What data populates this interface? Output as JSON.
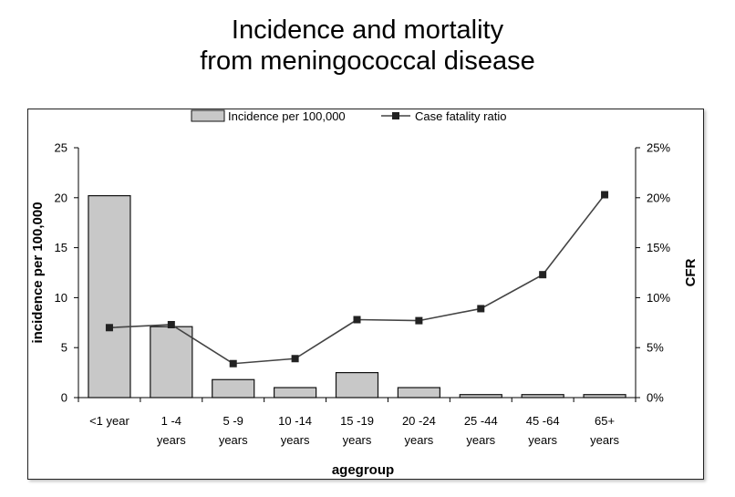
{
  "title_line1": "Incidence and mortality",
  "title_line2": "from meningococcal disease",
  "chart_data": {
    "type": "bar+line",
    "categories": [
      [
        "<1 year"
      ],
      [
        "1 -4",
        "years"
      ],
      [
        "5 -9",
        "years"
      ],
      [
        "10 -14",
        "years"
      ],
      [
        "15 -19",
        "years"
      ],
      [
        "20 -24",
        "years"
      ],
      [
        "25 -44",
        "years"
      ],
      [
        "45 -64",
        "years"
      ],
      [
        "65+",
        "years"
      ]
    ],
    "series": [
      {
        "name": "Incidence per 100,000",
        "kind": "bar",
        "axis": "left",
        "values": [
          20.2,
          7.1,
          1.8,
          1.0,
          2.5,
          1.0,
          0.3,
          0.3,
          0.3
        ]
      },
      {
        "name": "Case fatality ratio",
        "kind": "line",
        "axis": "right",
        "values": [
          7.0,
          7.3,
          3.4,
          3.9,
          7.8,
          7.7,
          8.9,
          12.3,
          20.3
        ]
      }
    ],
    "xlabel": "agegroup",
    "ylabel": "incidence per 100,000",
    "y2label": "CFR",
    "ylim": [
      0,
      25
    ],
    "y2lim": [
      0,
      25
    ],
    "yticks": [
      "0",
      "5",
      "10",
      "15",
      "20",
      "25"
    ],
    "y2ticks": [
      "0%",
      "5%",
      "10%",
      "15%",
      "20%",
      "25%"
    ],
    "legend_position": "top-center",
    "colors": {
      "bar_fill": "#c8c8c8",
      "bar_stroke": "#111111",
      "line": "#444444",
      "marker": "#222222"
    }
  }
}
